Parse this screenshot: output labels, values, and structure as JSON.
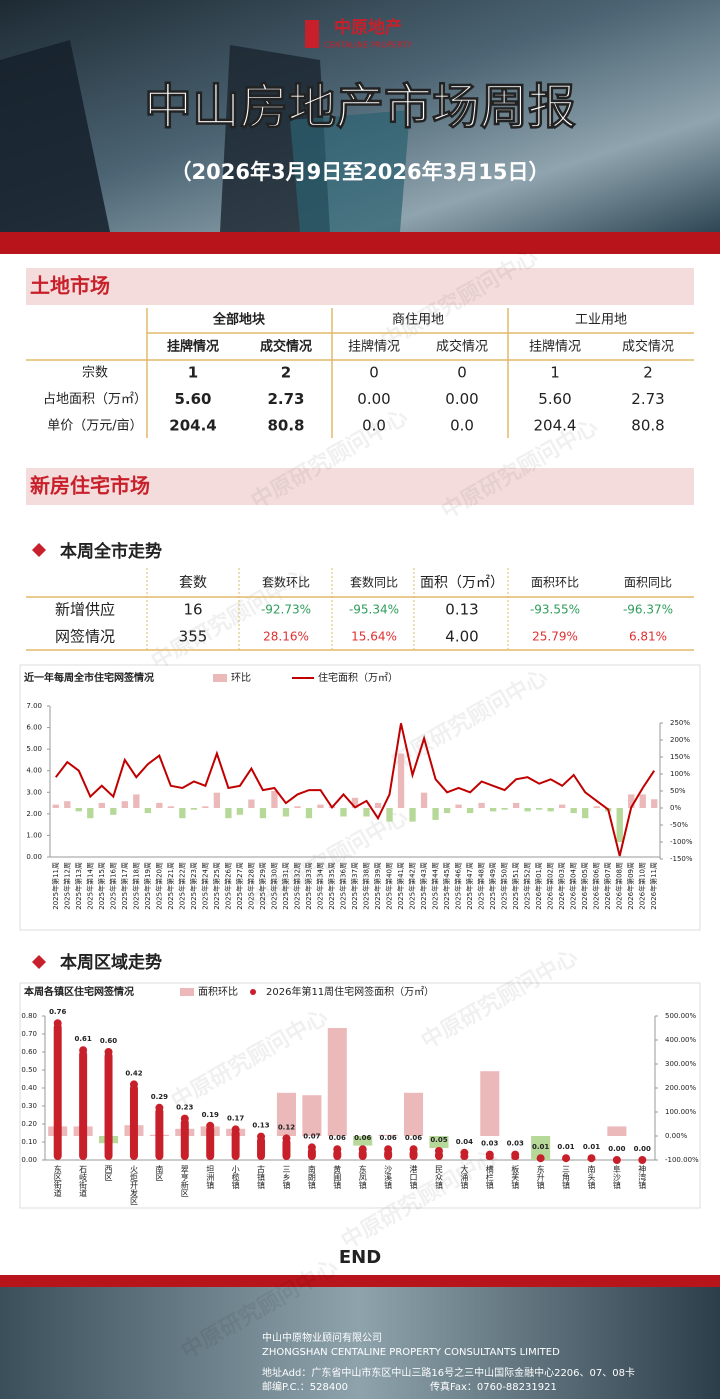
{
  "header": {
    "logo": "中原地产",
    "logo_en": "CENTALINE PROPERTY",
    "title": "中山房地产市场周报",
    "subtitle": "（2026年3月9日至2026年3月15日）"
  },
  "watermark": "中原研究顾问中心",
  "land": {
    "title": "土地市场",
    "groups": [
      "全部地块",
      "商住用地",
      "工业用地"
    ],
    "subheads": [
      "挂牌情况",
      "成交情况",
      "挂牌情况",
      "成交情况",
      "挂牌情况",
      "成交情况"
    ],
    "rows": [
      [
        "宗数",
        "1",
        "2",
        "0",
        "0",
        "1",
        "2"
      ],
      [
        "占地面积（万㎡）",
        "5.60",
        "2.73",
        "0.00",
        "0.00",
        "5.60",
        "2.73"
      ],
      [
        "单价（万元/亩）",
        "204.4",
        "80.8",
        "0.0",
        "0.0",
        "204.4",
        "80.8"
      ]
    ]
  },
  "new_home": {
    "title": "新房住宅市场",
    "weekly_title": "本周全市走势",
    "columns": [
      "套数",
      "套数环比",
      "套数同比",
      "面积（万㎡）",
      "面积环比",
      "面积同比"
    ],
    "rows": [
      [
        "新增供应",
        "16",
        "-92.73%",
        "-95.34%",
        "0.13",
        "-93.55%",
        "-96.37%"
      ],
      [
        "网签情况",
        "355",
        "28.16%",
        "15.64%",
        "4.00",
        "25.79%",
        "6.81%"
      ]
    ],
    "district_title": "本周区域走势"
  },
  "chart_data": [
    {
      "type": "combo",
      "title": "近一年每周全市住宅网签情况",
      "categories": [
        "2025年第11周",
        "2025年第12周",
        "2025年第13周",
        "2025年第14周",
        "2025年第15周",
        "2025年第16周",
        "2025年第17周",
        "2025年第18周",
        "2025年第19周",
        "2025年第20周",
        "2025年第21周",
        "2025年第22周",
        "2025年第23周",
        "2025年第24周",
        "2025年第25周",
        "2025年第26周",
        "2025年第27周",
        "2025年第28周",
        "2025年第29周",
        "2025年第30周",
        "2025年第31周",
        "2025年第32周",
        "2025年第33周",
        "2025年第34周",
        "2025年第35周",
        "2025年第36周",
        "2025年第37周",
        "2025年第38周",
        "2025年第39周",
        "2025年第40周",
        "2025年第41周",
        "2025年第42周",
        "2025年第43周",
        "2025年第44周",
        "2025年第45周",
        "2025年第46周",
        "2025年第47周",
        "2025年第48周",
        "2025年第49周",
        "2025年第50周",
        "2025年第51周",
        "2025年第52周",
        "2026年第01周",
        "2026年第02周",
        "2026年第03周",
        "2026年第04周",
        "2026年第05周",
        "2026年第06周",
        "2026年第07周",
        "2026年第08周",
        "2026年第09周",
        "2026年第10周",
        "2026年第11周"
      ],
      "series": [
        {
          "name": "环比",
          "type": "bar",
          "axis": "y2",
          "color": "#ecb9bb",
          "negative_color": "#b6d99a",
          "values": [
            10,
            20,
            -10,
            -30,
            15,
            -20,
            20,
            40,
            -15,
            15,
            5,
            -30,
            -5,
            5,
            45,
            -30,
            -20,
            25,
            -30,
            50,
            -25,
            5,
            -30,
            10,
            5,
            -25,
            30,
            -25,
            15,
            -40,
            160,
            -40,
            45,
            -35,
            -15,
            10,
            -15,
            15,
            -10,
            -5,
            15,
            -10,
            -5,
            -10,
            10,
            -15,
            -30,
            5,
            -10,
            -100,
            40,
            40,
            25.79
          ]
        },
        {
          "name": "住宅面积（万㎡）",
          "type": "line",
          "color": "#c00000",
          "values": [
            3.7,
            4.4,
            4.0,
            2.8,
            3.3,
            2.8,
            4.5,
            3.7,
            4.3,
            4.7,
            3.3,
            3.2,
            3.5,
            3.3,
            4.8,
            3.2,
            3.3,
            4.1,
            3.1,
            3.2,
            2.5,
            2.9,
            3.1,
            3.1,
            2.3,
            2.9,
            2.3,
            2.6,
            1.8,
            2.9,
            6.2,
            3.8,
            5.5,
            3.6,
            3.0,
            3.2,
            3.0,
            3.5,
            3.3,
            3.1,
            3.6,
            3.7,
            3.4,
            3.6,
            3.3,
            3.8,
            3.0,
            2.6,
            2.2,
            0.05,
            2.3,
            3.2,
            4.0
          ]
        }
      ],
      "ylim": [
        0,
        7
      ],
      "yticks": [
        {
          "value": 0,
          "label": "0.00"
        },
        {
          "value": 1,
          "label": "1.00"
        },
        {
          "value": 2,
          "label": "2.00"
        },
        {
          "value": 3,
          "label": "3.00"
        },
        {
          "value": 4,
          "label": "4.00"
        },
        {
          "value": 5,
          "label": "5.00"
        },
        {
          "value": 6,
          "label": "6.00"
        },
        {
          "value": 7,
          "label": "7.00"
        }
      ],
      "y2lim": [
        -150,
        250
      ],
      "y2ticks": [
        {
          "value": -150,
          "label": "-150%"
        },
        {
          "value": -100,
          "label": "-100%"
        },
        {
          "value": -50,
          "label": "-50%"
        },
        {
          "value": 0,
          "label": "0%"
        },
        {
          "value": 50,
          "label": "50%"
        },
        {
          "value": 100,
          "label": "100%"
        },
        {
          "value": 150,
          "label": "150%"
        },
        {
          "value": 200,
          "label": "200%"
        },
        {
          "value": 250,
          "label": "250%"
        }
      ]
    },
    {
      "type": "combo",
      "title": "本周各镇区住宅网签情况",
      "categories": [
        "东区街道",
        "石岐街道",
        "西区",
        "火炬开发区",
        "南区",
        "翠亨新区",
        "坦洲镇",
        "小榄镇",
        "古镇镇",
        "三乡镇",
        "南朗镇",
        "黄圃镇",
        "东凤镇",
        "沙溪镇",
        "港口镇",
        "民众镇",
        "大涌镇",
        "横栏镇",
        "板芙镇",
        "东升镇",
        "三角镇",
        "南头镇",
        "阜沙镇",
        "神湾镇"
      ],
      "series": [
        {
          "name": "面积环比",
          "type": "bar",
          "axis": "y2",
          "color": "#ecb9bb",
          "negative_color": "#b6d99a",
          "values": [
            40,
            40,
            -30,
            45,
            5,
            30,
            40,
            30,
            0,
            180,
            170,
            450,
            -40,
            5,
            180,
            -50,
            0,
            270,
            0,
            -100,
            0,
            0,
            40,
            0
          ]
        },
        {
          "name": "2026年第11周住宅网签面积（万㎡）",
          "type": "column",
          "color": "#c8202a",
          "values": [
            0.76,
            0.61,
            0.6,
            0.42,
            0.29,
            0.23,
            0.19,
            0.17,
            0.13,
            0.12,
            0.07,
            0.06,
            0.06,
            0.06,
            0.06,
            0.05,
            0.04,
            0.03,
            0.03,
            0.01,
            0.01,
            0.01,
            0,
            0
          ],
          "value_labels": [
            "0.76",
            "0.61",
            "0.60",
            "0.42",
            "0.29",
            "0.23",
            "0.19",
            "0.17",
            "0.13",
            "0.12",
            "0.07",
            "0.06",
            "0.06",
            "0.06",
            "0.06",
            "0.05",
            "0.04",
            "0.03",
            "0.03",
            "0.01",
            "0.01",
            "0.01",
            "0.00",
            "0.00"
          ]
        }
      ],
      "ylim": [
        0,
        0.8
      ],
      "yticks": [
        {
          "value": 0,
          "label": "0.00"
        },
        {
          "value": 0.1,
          "label": "0.10"
        },
        {
          "value": 0.2,
          "label": "0.20"
        },
        {
          "value": 0.3,
          "label": "0.30"
        },
        {
          "value": 0.4,
          "label": "0.40"
        },
        {
          "value": 0.5,
          "label": "0.50"
        },
        {
          "value": 0.6,
          "label": "0.60"
        },
        {
          "value": 0.7,
          "label": "0.70"
        },
        {
          "value": 0.8,
          "label": "0.80"
        }
      ],
      "y2lim": [
        -100,
        500
      ],
      "y2ticks": [
        {
          "value": -100,
          "label": "-100.00%"
        },
        {
          "value": 0,
          "label": "0.00%"
        },
        {
          "value": 100,
          "label": "100.00%"
        },
        {
          "value": 200,
          "label": "200.00%"
        },
        {
          "value": 300,
          "label": "300.00%"
        },
        {
          "value": 400,
          "label": "400.00%"
        },
        {
          "value": 500,
          "label": "500.00%"
        }
      ]
    }
  ],
  "end": "END",
  "footer": {
    "company": "中山中原物业顾问有限公司",
    "company_en": "ZHONGSHAN CENTALINE PROPERTY CONSULTANTS LIMITED",
    "address": "地址Add：广东省中山市东区中山三路16号之三中山国际金融中心2206、07、08卡",
    "postcode": "邮编P.C.：528400",
    "fax": "传真Fax：0760-88231921"
  }
}
